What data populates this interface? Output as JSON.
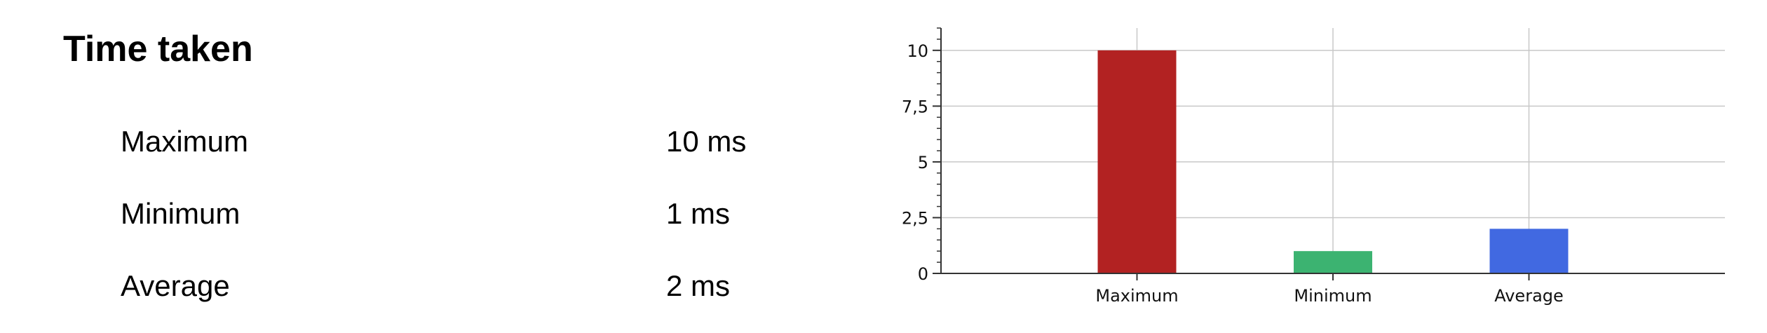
{
  "section": {
    "title": "Time taken",
    "rows": [
      {
        "label": "Maximum",
        "value": "10 ms"
      },
      {
        "label": "Minimum",
        "value": "1 ms"
      },
      {
        "label": "Average",
        "value": "2 ms"
      }
    ]
  },
  "chart_data": {
    "type": "bar",
    "categories": [
      "Maximum",
      "Minimum",
      "Average"
    ],
    "values": [
      10,
      1,
      2
    ],
    "colors": [
      "#b22222",
      "#3cb371",
      "#4169e1"
    ],
    "ylim": [
      0,
      11
    ],
    "yticks": [
      {
        "value": 0,
        "label": "0"
      },
      {
        "value": 2.5,
        "label": "2,5"
      },
      {
        "value": 5,
        "label": "5"
      },
      {
        "value": 7.5,
        "label": "7,5"
      },
      {
        "value": 10,
        "label": "10"
      }
    ],
    "grid": true,
    "legend": "none"
  }
}
